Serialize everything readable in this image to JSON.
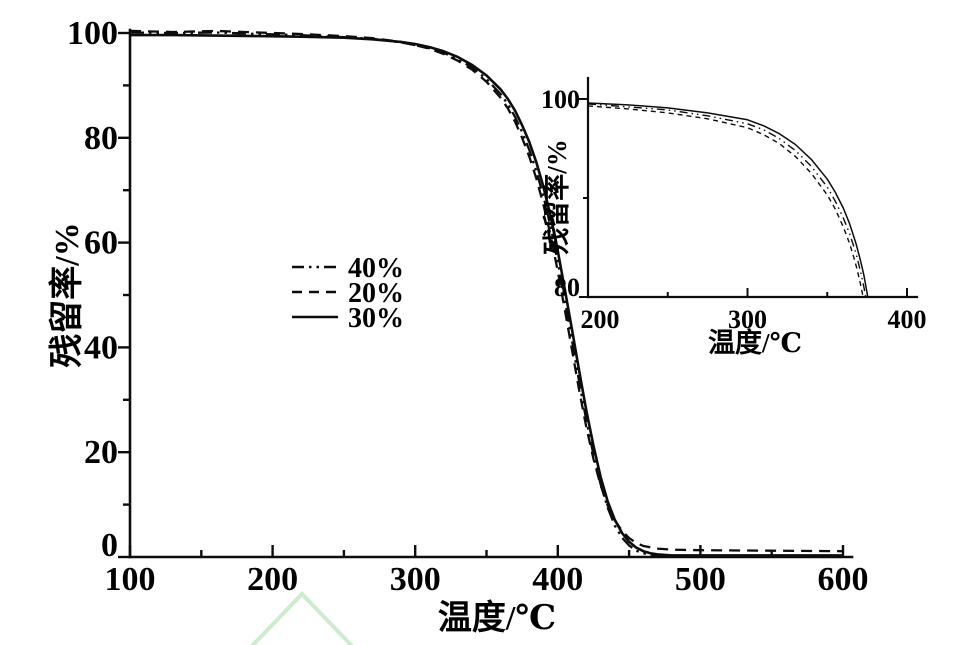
{
  "figure": {
    "background": "#ffffff",
    "ink_color": "#0d0d0d",
    "watermark": {
      "name": "green-chevron",
      "color": "#cdeccd"
    }
  },
  "chart_data": [
    {
      "id": "main",
      "type": "line",
      "title": "",
      "xlabel": "温度/℃",
      "ylabel": "残留率/%",
      "xlim": [
        100,
        600
      ],
      "ylim": [
        0,
        100
      ],
      "grid": false,
      "x_ticks_major": [
        100,
        200,
        300,
        400,
        500,
        600
      ],
      "x_ticks_minor": [
        150,
        250,
        350,
        450,
        550
      ],
      "y_ticks_major": [
        0,
        20,
        40,
        60,
        80,
        100
      ],
      "y_ticks_minor": [
        10,
        30,
        50,
        70,
        90
      ],
      "legend_position": "inside-left-center",
      "series": [
        {
          "name": "40%",
          "style": "dash-dot-dot",
          "color": "#0d0d0d",
          "points": [
            [
              100,
              100.1
            ],
            [
              130,
              100.0
            ],
            [
              160,
              100.1
            ],
            [
              190,
              99.8
            ],
            [
              220,
              99.6
            ],
            [
              250,
              99.2
            ],
            [
              270,
              98.9
            ],
            [
              290,
              98.2
            ],
            [
              300,
              97.7
            ],
            [
              310,
              97.1
            ],
            [
              320,
              96.2
            ],
            [
              330,
              95.0
            ],
            [
              340,
              93.4
            ],
            [
              350,
              91.2
            ],
            [
              360,
              88.3
            ],
            [
              365,
              86.4
            ],
            [
              370,
              84.0
            ],
            [
              375,
              81.1
            ],
            [
              380,
              77.7
            ],
            [
              385,
              73.6
            ],
            [
              390,
              68.8
            ],
            [
              395,
              63.0
            ],
            [
              400,
              56.3
            ],
            [
              405,
              48.9
            ],
            [
              410,
              41.2
            ],
            [
              415,
              33.4
            ],
            [
              420,
              26.1
            ],
            [
              425,
              19.5
            ],
            [
              430,
              13.9
            ],
            [
              435,
              9.4
            ],
            [
              440,
              6.0
            ],
            [
              445,
              3.7
            ],
            [
              450,
              2.2
            ],
            [
              455,
              1.2
            ],
            [
              460,
              0.7
            ],
            [
              465,
              0.4
            ],
            [
              470,
              0.3
            ],
            [
              480,
              0.2
            ],
            [
              500,
              0.1
            ],
            [
              550,
              0.1
            ],
            [
              600,
              0.1
            ]
          ]
        },
        {
          "name": "20%",
          "style": "dashed",
          "color": "#0d0d0d",
          "points": [
            [
              100,
              100.4
            ],
            [
              130,
              100.2
            ],
            [
              160,
              100.4
            ],
            [
              190,
              100.1
            ],
            [
              220,
              99.8
            ],
            [
              250,
              99.4
            ],
            [
              270,
              99.0
            ],
            [
              290,
              98.3
            ],
            [
              300,
              97.7
            ],
            [
              310,
              97.0
            ],
            [
              320,
              96.0
            ],
            [
              330,
              94.7
            ],
            [
              340,
              93.0
            ],
            [
              350,
              90.7
            ],
            [
              360,
              87.6
            ],
            [
              365,
              85.6
            ],
            [
              370,
              83.1
            ],
            [
              375,
              80.0
            ],
            [
              380,
              76.4
            ],
            [
              385,
              72.2
            ],
            [
              390,
              67.2
            ],
            [
              395,
              61.3
            ],
            [
              400,
              54.5
            ],
            [
              405,
              47.1
            ],
            [
              410,
              39.4
            ],
            [
              415,
              31.8
            ],
            [
              420,
              24.8
            ],
            [
              425,
              18.7
            ],
            [
              430,
              13.7
            ],
            [
              435,
              9.8
            ],
            [
              440,
              7.0
            ],
            [
              445,
              5.0
            ],
            [
              450,
              3.6
            ],
            [
              455,
              2.7
            ],
            [
              460,
              2.1
            ],
            [
              470,
              1.6
            ],
            [
              480,
              1.4
            ],
            [
              500,
              1.3
            ],
            [
              550,
              1.2
            ],
            [
              600,
              1.1
            ]
          ]
        },
        {
          "name": "30%",
          "style": "solid",
          "color": "#0d0d0d",
          "points": [
            [
              100,
              99.6
            ],
            [
              130,
              99.6
            ],
            [
              160,
              99.5
            ],
            [
              190,
              99.4
            ],
            [
              220,
              99.3
            ],
            [
              250,
              99.1
            ],
            [
              270,
              98.8
            ],
            [
              290,
              98.3
            ],
            [
              300,
              97.9
            ],
            [
              310,
              97.3
            ],
            [
              320,
              96.5
            ],
            [
              330,
              95.4
            ],
            [
              340,
              93.9
            ],
            [
              350,
              91.9
            ],
            [
              360,
              89.2
            ],
            [
              365,
              87.4
            ],
            [
              370,
              85.2
            ],
            [
              375,
              82.4
            ],
            [
              380,
              79.2
            ],
            [
              385,
              75.3
            ],
            [
              390,
              70.6
            ],
            [
              395,
              65.0
            ],
            [
              400,
              58.4
            ],
            [
              405,
              51.0
            ],
            [
              410,
              43.3
            ],
            [
              415,
              35.5
            ],
            [
              420,
              28.0
            ],
            [
              425,
              21.2
            ],
            [
              430,
              15.3
            ],
            [
              435,
              10.6
            ],
            [
              440,
              7.1
            ],
            [
              445,
              4.6
            ],
            [
              450,
              2.9
            ],
            [
              455,
              1.8
            ],
            [
              460,
              1.1
            ],
            [
              465,
              0.7
            ],
            [
              470,
              0.5
            ],
            [
              480,
              0.3
            ],
            [
              500,
              0.3
            ],
            [
              550,
              0.3
            ],
            [
              600,
              0.3
            ]
          ]
        }
      ]
    },
    {
      "id": "inset",
      "type": "line",
      "title": "",
      "xlabel": "温度/℃",
      "ylabel": "残留率/%",
      "xlim": [
        200,
        400
      ],
      "ylim": [
        80,
        100
      ],
      "grid": false,
      "x_ticks_major": [
        200,
        300,
        400
      ],
      "x_ticks_minor": [
        250,
        350
      ],
      "y_ticks_major": [
        80,
        100
      ],
      "y_ticks_minor": [
        90
      ],
      "legend_position": "none",
      "series": [
        {
          "name": "40%",
          "style": "dash-dot-dot",
          "color": "#0d0d0d",
          "points": [
            [
              200,
              99.5
            ],
            [
              225,
              99.2
            ],
            [
              250,
              98.9
            ],
            [
              275,
              98.3
            ],
            [
              300,
              97.5
            ],
            [
              310,
              96.9
            ],
            [
              320,
              96.0
            ],
            [
              330,
              94.8
            ],
            [
              340,
              93.2
            ],
            [
              350,
              91.1
            ],
            [
              355,
              89.7
            ],
            [
              360,
              88.0
            ],
            [
              364,
              86.4
            ],
            [
              368,
              84.4
            ],
            [
              371,
              82.5
            ],
            [
              373,
              81.0
            ],
            [
              374.5,
              79.7
            ]
          ]
        },
        {
          "name": "20%",
          "style": "dashed",
          "color": "#0d0d0d",
          "points": [
            [
              200,
              99.3
            ],
            [
              225,
              99.0
            ],
            [
              250,
              98.6
            ],
            [
              275,
              98.0
            ],
            [
              300,
              97.1
            ],
            [
              310,
              96.4
            ],
            [
              320,
              95.5
            ],
            [
              330,
              94.2
            ],
            [
              340,
              92.5
            ],
            [
              350,
              90.3
            ],
            [
              355,
              88.9
            ],
            [
              360,
              87.1
            ],
            [
              364,
              85.4
            ],
            [
              367,
              83.8
            ],
            [
              369,
              82.6
            ],
            [
              371,
              81.2
            ],
            [
              372.5,
              80.0
            ],
            [
              373,
              79.5
            ]
          ]
        },
        {
          "name": "30%",
          "style": "solid",
          "color": "#0d0d0d",
          "points": [
            [
              200,
              99.6
            ],
            [
              225,
              99.4
            ],
            [
              250,
              99.1
            ],
            [
              275,
              98.6
            ],
            [
              300,
              97.9
            ],
            [
              310,
              97.3
            ],
            [
              320,
              96.5
            ],
            [
              330,
              95.4
            ],
            [
              340,
              93.9
            ],
            [
              350,
              91.9
            ],
            [
              355,
              90.6
            ],
            [
              360,
              89.0
            ],
            [
              364,
              87.4
            ],
            [
              368,
              85.4
            ],
            [
              371,
              83.6
            ],
            [
              373,
              82.2
            ],
            [
              375,
              80.4
            ],
            [
              375.8,
              79.5
            ]
          ]
        }
      ]
    }
  ]
}
